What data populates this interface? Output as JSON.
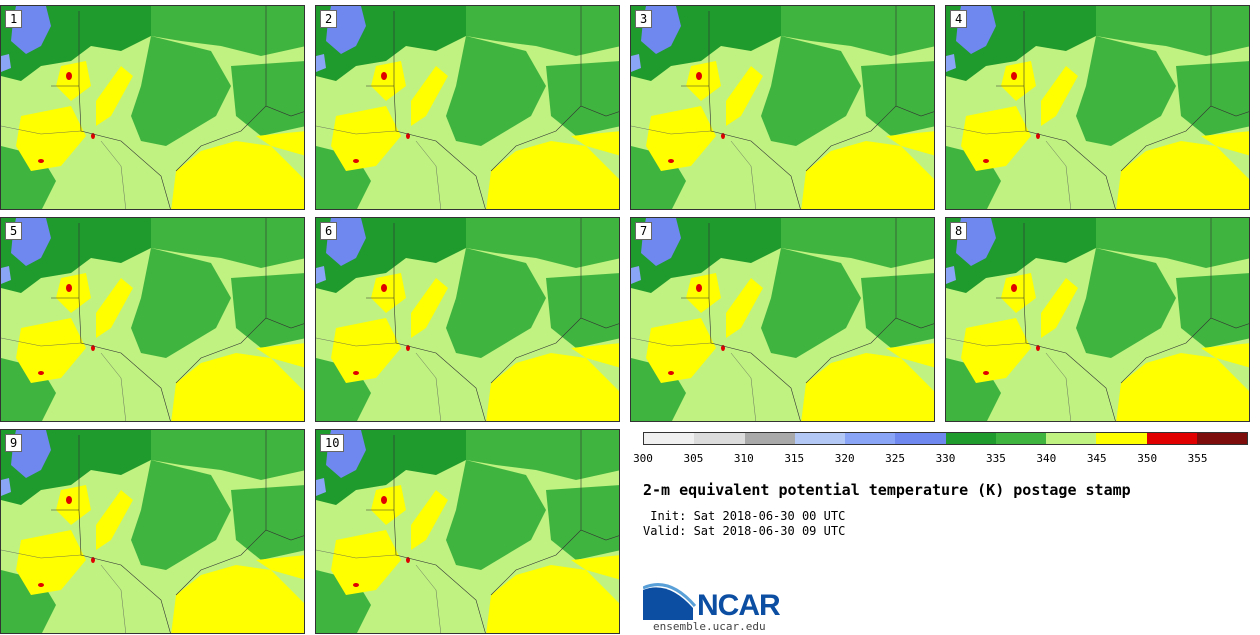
{
  "members": [
    "1",
    "2",
    "3",
    "4",
    "5",
    "6",
    "7",
    "8",
    "9",
    "10"
  ],
  "colorbar": {
    "colors": [
      "#f0f0f0",
      "#dcdcdc",
      "#a9a9a9",
      "#b4c8f5",
      "#8aa5f5",
      "#6f88f0",
      "#1f9a2c",
      "#3fb43f",
      "#bff280",
      "#ffff00",
      "#e00000",
      "#7d0d0d"
    ],
    "ticks": [
      "300",
      "305",
      "310",
      "315",
      "320",
      "325",
      "330",
      "335",
      "340",
      "345",
      "350",
      "355"
    ]
  },
  "title": "2-m equivalent potential temperature (K) postage stamp",
  "init_line": " Init: Sat 2018-06-30 00 UTC",
  "valid_line": "Valid: Sat 2018-06-30 09 UTC",
  "logo": {
    "text": "NCAR",
    "url": "ensemble.ucar.edu"
  }
}
